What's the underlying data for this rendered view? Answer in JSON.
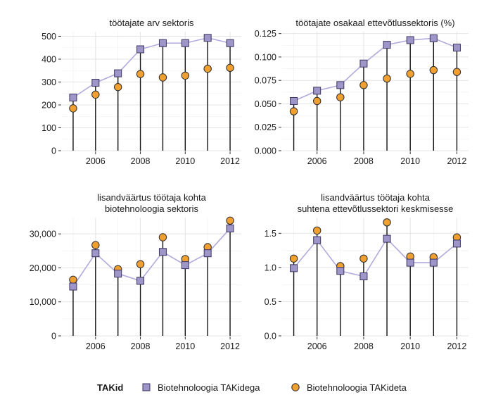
{
  "colors": {
    "square_fill": "#9e96c9",
    "square_stroke": "#3a3560",
    "line": "#b2a9dc",
    "circle_fill": "#f0a030",
    "circle_stroke": "#2b2b2b",
    "grid_major": "#e4e4e4",
    "grid_minor": "#f2f2f2"
  },
  "legend": {
    "title": "TAKid",
    "items": [
      {
        "label": "Biotehnoloogia TAKidega",
        "marker": "square"
      },
      {
        "label": "Biotehnoloogia TAKideta",
        "marker": "circle"
      }
    ]
  },
  "chart_data": [
    {
      "type": "line",
      "title_lines": [
        "töötajate arv sektoris"
      ],
      "x": [
        2005,
        2006,
        2007,
        2008,
        2009,
        2010,
        2011,
        2012
      ],
      "x_ticks": [
        2006,
        2008,
        2010,
        2012
      ],
      "x_tick_labels": [
        "2006",
        "2008",
        "2010",
        "2012"
      ],
      "y_ticks": [
        0,
        100,
        200,
        300,
        400,
        500
      ],
      "y_tick_labels": [
        "0",
        "100",
        "200",
        "300",
        "400",
        "500"
      ],
      "ylim": [
        0,
        520
      ],
      "grid": true,
      "series": [
        {
          "name": "Biotehnoloogia TAKidega",
          "marker": "square",
          "values": [
            232,
            297,
            338,
            443,
            470,
            470,
            493,
            470
          ]
        },
        {
          "name": "Biotehnoloogia TAKideta",
          "marker": "circle",
          "values": [
            185,
            245,
            278,
            335,
            320,
            328,
            358,
            362
          ]
        }
      ]
    },
    {
      "type": "line",
      "title_lines": [
        "töötajate osakaal ettevõtlussektoris (%)"
      ],
      "x": [
        2005,
        2006,
        2007,
        2008,
        2009,
        2010,
        2011,
        2012
      ],
      "x_ticks": [
        2006,
        2008,
        2010,
        2012
      ],
      "x_tick_labels": [
        "2006",
        "2008",
        "2010",
        "2012"
      ],
      "y_ticks": [
        0,
        0.025,
        0.05,
        0.075,
        0.1,
        0.125
      ],
      "y_tick_labels": [
        "0.000",
        "0.025",
        "0.050",
        "0.075",
        "0.100",
        "0.125"
      ],
      "ylim": [
        0,
        0.127
      ],
      "grid": true,
      "series": [
        {
          "name": "Biotehnoloogia TAKidega",
          "marker": "square",
          "values": [
            0.053,
            0.064,
            0.07,
            0.093,
            0.113,
            0.118,
            0.12,
            0.11
          ]
        },
        {
          "name": "Biotehnoloogia TAKideta",
          "marker": "circle",
          "values": [
            0.042,
            0.053,
            0.057,
            0.07,
            0.077,
            0.082,
            0.086,
            0.084
          ]
        }
      ]
    },
    {
      "type": "line",
      "title_lines": [
        "lisandväärtus töötaja kohta",
        "biotehnoloogia sektoris"
      ],
      "x": [
        2005,
        2006,
        2007,
        2008,
        2009,
        2010,
        2011,
        2012
      ],
      "x_ticks": [
        2006,
        2008,
        2010,
        2012
      ],
      "x_tick_labels": [
        "2006",
        "2008",
        "2010",
        "2012"
      ],
      "y_ticks": [
        0,
        10000,
        20000,
        30000
      ],
      "y_tick_labels": [
        "0",
        "10,000",
        "20,000",
        "30,000"
      ],
      "ylim": [
        0,
        34800
      ],
      "grid": true,
      "series": [
        {
          "name": "Biotehnoloogia TAKidega",
          "marker": "square",
          "values": [
            14500,
            24300,
            18300,
            16200,
            24700,
            20800,
            24300,
            31600
          ]
        },
        {
          "name": "Biotehnoloogia TAKideta",
          "marker": "circle",
          "values": [
            16500,
            26700,
            19600,
            21100,
            29000,
            22600,
            26100,
            33900
          ]
        }
      ]
    },
    {
      "type": "line",
      "title_lines": [
        "lisandväärtus töötaja kohta",
        "suhtena ettevõtlussektori keskmisesse"
      ],
      "x": [
        2005,
        2006,
        2007,
        2008,
        2009,
        2010,
        2011,
        2012
      ],
      "x_ticks": [
        2006,
        2008,
        2010,
        2012
      ],
      "x_tick_labels": [
        "2006",
        "2008",
        "2010",
        "2012"
      ],
      "y_ticks": [
        0,
        0.5,
        1.0,
        1.5
      ],
      "y_tick_labels": [
        "0.0",
        "0.5",
        "1.0",
        "1.5"
      ],
      "ylim": [
        0,
        1.73
      ],
      "grid": true,
      "series": [
        {
          "name": "Biotehnoloogia TAKidega",
          "marker": "square",
          "values": [
            0.99,
            1.4,
            0.95,
            0.87,
            1.42,
            1.07,
            1.07,
            1.35
          ]
        },
        {
          "name": "Biotehnoloogia TAKideta",
          "marker": "circle",
          "values": [
            1.13,
            1.54,
            1.02,
            1.13,
            1.66,
            1.16,
            1.15,
            1.44
          ]
        }
      ]
    }
  ]
}
